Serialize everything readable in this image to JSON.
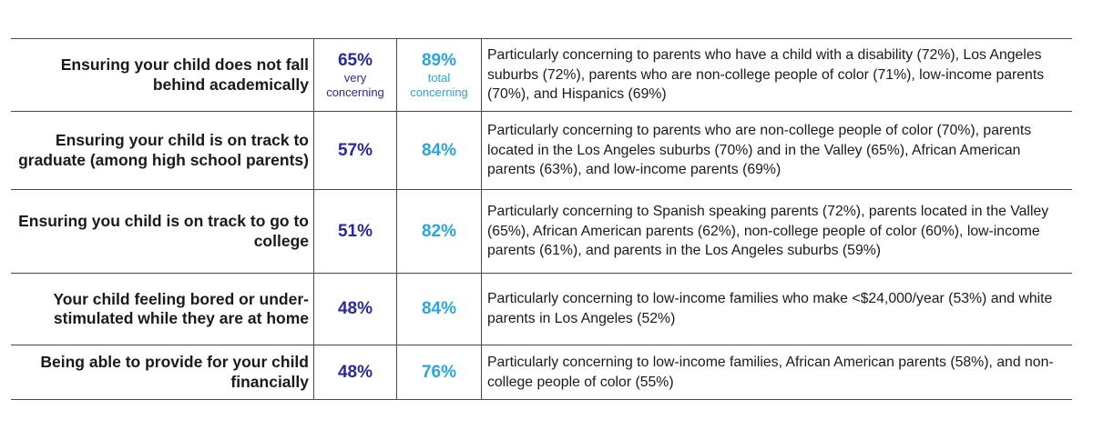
{
  "rows": [
    {
      "concern": "Ensuring your child does not fall behind academically",
      "very": "65%",
      "very_sub": "very concerning",
      "total": "89%",
      "total_sub": "total concerning",
      "detail": "Particularly concerning to parents who have a child with a disability (72%), Los Angeles suburbs (72%), parents who are non-college people of color (71%), low-income parents (70%), and Hispanics (69%)"
    },
    {
      "concern": "Ensuring your child is on track to graduate (among high school parents)",
      "very": "57%",
      "total": "84%",
      "detail": "Particularly concerning to parents who are non-college people of color (70%), parents located in the Los Angeles suburbs (70%) and in the Valley (65%), African American parents (63%), and low-income parents (69%)"
    },
    {
      "concern": "Ensuring you child is on track to go to college",
      "very": "51%",
      "total": "82%",
      "detail": "Particularly concerning to Spanish speaking parents (72%), parents located in the Valley (65%), African American parents (62%), non-college people of color (60%), low-income parents (61%), and parents in the Los Angeles suburbs (59%)"
    },
    {
      "concern": "Your child feeling bored or under-stimulated while they are at home",
      "very": "48%",
      "total": "84%",
      "detail": "Particularly concerning to low-income families who make <$24,000/year (53%) and white parents in Los Angeles (52%)"
    },
    {
      "concern": "Being able to provide for your child financially",
      "very": "48%",
      "total": "76%",
      "detail": "Particularly concerning to low-income families, African American parents (58%), and non-college people of color (55%)"
    }
  ]
}
